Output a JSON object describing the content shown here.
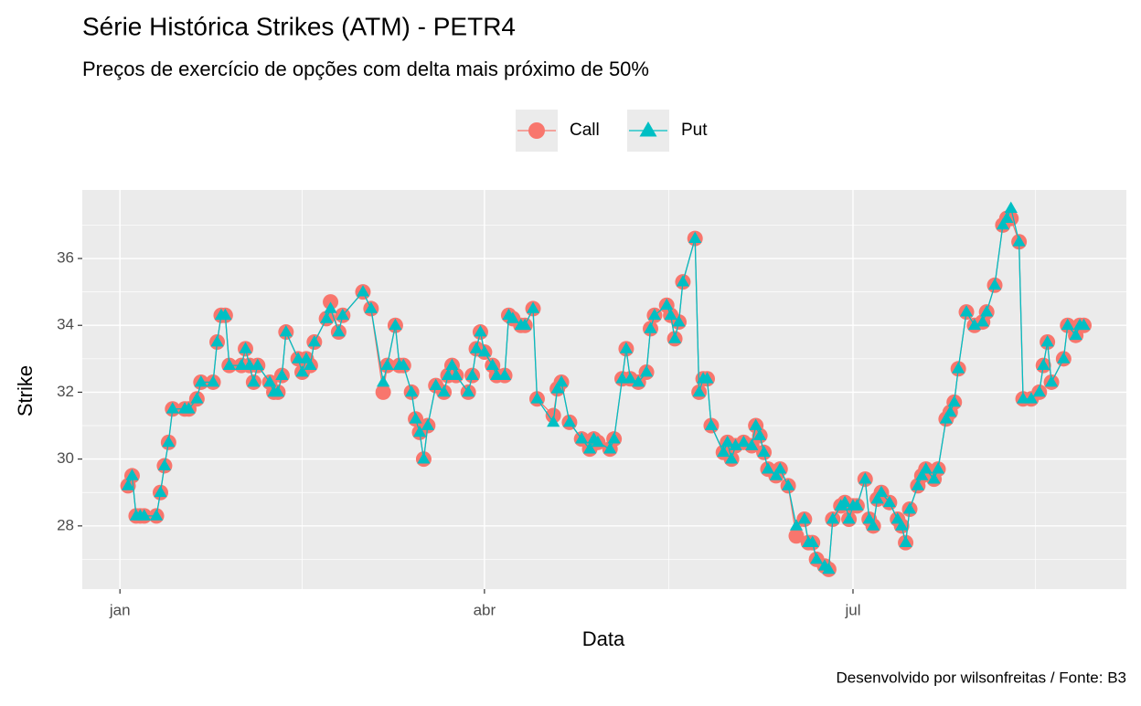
{
  "chart_data": {
    "type": "line",
    "title": "Série Histórica Strikes (ATM) - PETR4",
    "subtitle": "Preços de exercício de opções com delta mais próximo de 50%",
    "xlabel": "Data",
    "ylabel": "Strike",
    "caption": "Desenvolvido por wilsonfreitas / Fonte: B3",
    "legend": "top",
    "grid": true,
    "xlim": [
      -9.3,
      248.5
    ],
    "ylim": [
      26.11,
      38.05
    ],
    "xticks": [
      {
        "value": 0,
        "label": "jan"
      },
      {
        "value": 90,
        "label": "abr"
      },
      {
        "value": 181,
        "label": "jul"
      }
    ],
    "yticks": [
      28,
      30,
      32,
      34,
      36
    ],
    "x": [
      2,
      3,
      4,
      5,
      6,
      9,
      10,
      11,
      12,
      13,
      16,
      17,
      19,
      20,
      23,
      24,
      25,
      26,
      27,
      30,
      31,
      32,
      33,
      34,
      37,
      38,
      39,
      40,
      41,
      44,
      45,
      46,
      47,
      48,
      51,
      52,
      54,
      55,
      60,
      62,
      65,
      66,
      68,
      69,
      70,
      72,
      73,
      74,
      75,
      76,
      78,
      80,
      81,
      82,
      83,
      86,
      87,
      88,
      89,
      90,
      92,
      93,
      95,
      96,
      97,
      99,
      100,
      102,
      103,
      107,
      108,
      109,
      111,
      114,
      116,
      117,
      118,
      121,
      122,
      124,
      125,
      126,
      128,
      130,
      131,
      132,
      135,
      136,
      137,
      138,
      139,
      142,
      143,
      144,
      145,
      146,
      149,
      150,
      151,
      152,
      154,
      156,
      157,
      158,
      159,
      160,
      162,
      163,
      165,
      167,
      169,
      170,
      171,
      172,
      174,
      175,
      176,
      178,
      179,
      180,
      181,
      182,
      184,
      185,
      186,
      187,
      188,
      190,
      192,
      193,
      194,
      195,
      197,
      198,
      199,
      201,
      202,
      204,
      205,
      206,
      207,
      209,
      211,
      213,
      214,
      216,
      218,
      219,
      220,
      222,
      223,
      225,
      227,
      228,
      229,
      230,
      233,
      234,
      236,
      237,
      238
    ],
    "series": [
      {
        "name": "Call",
        "color": "#F8766D",
        "marker": "circle",
        "values": [
          29.2,
          29.5,
          28.3,
          28.3,
          28.3,
          28.3,
          29.0,
          29.8,
          30.5,
          31.5,
          31.5,
          31.5,
          31.8,
          32.3,
          32.3,
          33.5,
          34.3,
          34.3,
          32.8,
          32.8,
          33.3,
          32.8,
          32.3,
          32.8,
          32.3,
          32.0,
          32.0,
          32.5,
          33.8,
          33.0,
          32.6,
          33.0,
          32.8,
          33.5,
          34.2,
          34.7,
          33.8,
          34.3,
          35.0,
          34.5,
          32.0,
          32.8,
          34.0,
          32.8,
          32.8,
          32.0,
          31.2,
          30.8,
          30.0,
          31.0,
          32.2,
          32.0,
          32.5,
          32.8,
          32.5,
          32.0,
          32.5,
          33.3,
          33.8,
          33.2,
          32.8,
          32.5,
          32.5,
          34.3,
          34.2,
          34.0,
          34.0,
          34.5,
          31.8,
          31.3,
          32.1,
          32.3,
          31.1,
          30.6,
          30.3,
          30.6,
          30.5,
          30.3,
          30.6,
          32.4,
          33.3,
          32.4,
          32.3,
          32.6,
          33.9,
          34.3,
          34.6,
          34.3,
          33.6,
          34.1,
          35.3,
          36.6,
          32.0,
          32.4,
          32.4,
          31.0,
          30.2,
          30.5,
          30.0,
          30.4,
          30.5,
          30.4,
          31.0,
          30.7,
          30.2,
          29.7,
          29.5,
          29.7,
          29.2,
          27.7,
          28.2,
          27.5,
          27.5,
          27.0,
          26.8,
          26.7,
          28.2,
          28.6,
          28.7,
          28.2,
          28.6,
          28.6,
          29.4,
          28.2,
          28.0,
          28.8,
          29.0,
          28.7,
          28.2,
          28.0,
          27.5,
          28.5,
          29.2,
          29.5,
          29.7,
          29.4,
          29.7,
          31.2,
          31.4,
          31.7,
          32.7,
          34.4,
          34.0,
          34.1,
          34.4,
          35.2,
          37.0,
          37.2,
          37.2,
          36.5,
          31.8,
          31.8,
          32.0,
          32.8,
          33.5,
          32.3,
          33.0,
          34.0,
          33.7,
          34.0,
          34.0
        ]
      },
      {
        "name": "Put",
        "color": "#00BFC4",
        "marker": "triangle",
        "values": [
          29.2,
          29.5,
          28.3,
          28.3,
          28.3,
          28.3,
          29.0,
          29.8,
          30.5,
          31.5,
          31.5,
          31.5,
          31.8,
          32.3,
          32.3,
          33.5,
          34.3,
          34.3,
          32.8,
          32.8,
          33.3,
          32.8,
          32.3,
          32.8,
          32.3,
          32.0,
          32.0,
          32.5,
          33.8,
          33.0,
          32.6,
          33.0,
          32.8,
          33.5,
          34.2,
          34.5,
          33.8,
          34.3,
          35.0,
          34.5,
          32.3,
          32.8,
          34.0,
          32.8,
          32.8,
          32.0,
          31.2,
          30.8,
          30.0,
          31.0,
          32.2,
          32.0,
          32.5,
          32.8,
          32.5,
          32.0,
          32.5,
          33.3,
          33.8,
          33.2,
          32.8,
          32.5,
          32.5,
          34.3,
          34.2,
          34.0,
          34.0,
          34.5,
          31.8,
          31.1,
          32.1,
          32.3,
          31.1,
          30.6,
          30.3,
          30.6,
          30.5,
          30.3,
          30.6,
          32.4,
          33.3,
          32.4,
          32.3,
          32.6,
          33.9,
          34.3,
          34.6,
          34.3,
          33.6,
          34.1,
          35.3,
          36.6,
          32.0,
          32.4,
          32.4,
          31.0,
          30.2,
          30.5,
          30.0,
          30.4,
          30.5,
          30.4,
          31.0,
          30.7,
          30.2,
          29.7,
          29.5,
          29.7,
          29.2,
          28.0,
          28.2,
          27.5,
          27.5,
          27.0,
          26.8,
          26.7,
          28.2,
          28.6,
          28.7,
          28.2,
          28.6,
          28.6,
          29.4,
          28.2,
          28.0,
          28.8,
          29.0,
          28.7,
          28.2,
          28.0,
          27.5,
          28.5,
          29.2,
          29.5,
          29.7,
          29.4,
          29.7,
          31.2,
          31.4,
          31.7,
          32.7,
          34.4,
          34.0,
          34.1,
          34.4,
          35.2,
          37.0,
          37.2,
          37.5,
          36.5,
          31.8,
          31.8,
          32.0,
          32.8,
          33.5,
          32.3,
          33.0,
          34.0,
          33.7,
          34.0,
          34.0
        ]
      }
    ]
  }
}
